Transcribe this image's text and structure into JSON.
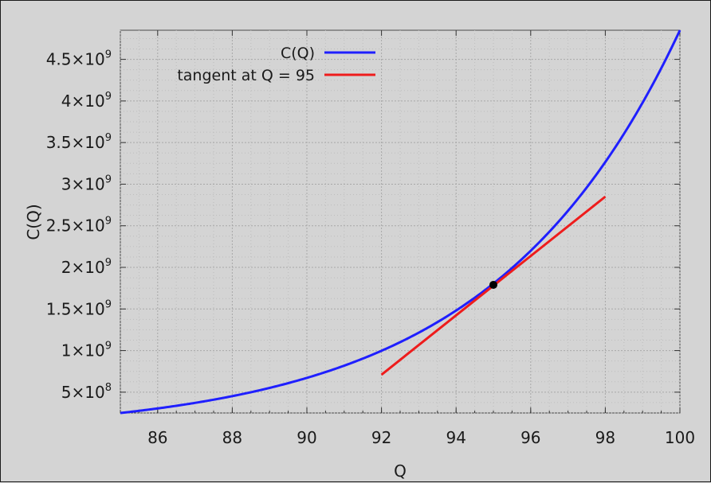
{
  "chart_data": {
    "type": "line",
    "title": "",
    "xlabel": "Q",
    "ylabel": "C(Q)",
    "xlim": [
      85,
      100
    ],
    "ylim": [
      250000000,
      4850000000
    ],
    "grid": true,
    "legend_position": "top-center",
    "x_ticks": [
      86,
      88,
      90,
      92,
      94,
      96,
      98,
      100
    ],
    "x_tick_labels": [
      "86",
      "88",
      "90",
      "92",
      "94",
      "96",
      "98",
      "100"
    ],
    "y_ticks": [
      500000000,
      1000000000,
      1500000000,
      2000000000,
      2500000000,
      3000000000,
      3500000000,
      4000000000,
      4500000000
    ],
    "y_tick_labels": [
      {
        "mantissa": "5×10",
        "exponent": "8"
      },
      {
        "mantissa": "1×10",
        "exponent": "9"
      },
      {
        "mantissa": "1.5×10",
        "exponent": "9"
      },
      {
        "mantissa": "2×10",
        "exponent": "9"
      },
      {
        "mantissa": "2.5×10",
        "exponent": "9"
      },
      {
        "mantissa": "3×10",
        "exponent": "9"
      },
      {
        "mantissa": "3.5×10",
        "exponent": "9"
      },
      {
        "mantissa": "4×10",
        "exponent": "9"
      },
      {
        "mantissa": "4.5×10",
        "exponent": "9"
      }
    ],
    "series": [
      {
        "name": "C(Q)",
        "color": "#1f1fff",
        "x": [
          85,
          86,
          87,
          88,
          89,
          90,
          91,
          92,
          93,
          94,
          95,
          96,
          97,
          98,
          99,
          100
        ],
        "y": [
          250000000,
          300000000,
          370000000,
          440000000,
          530000000,
          640000000,
          790000000,
          980000000,
          1200000000,
          1480000000,
          1790000000,
          2180000000,
          2680000000,
          3270000000,
          3990000000,
          4850000000
        ]
      },
      {
        "name": "tangent at Q = 95",
        "color": "#ee1c1c",
        "x": [
          92,
          98
        ],
        "y": [
          710000000,
          2850000000
        ]
      }
    ],
    "point": {
      "x": 95,
      "y": 1790000000,
      "color": "#000000"
    }
  }
}
